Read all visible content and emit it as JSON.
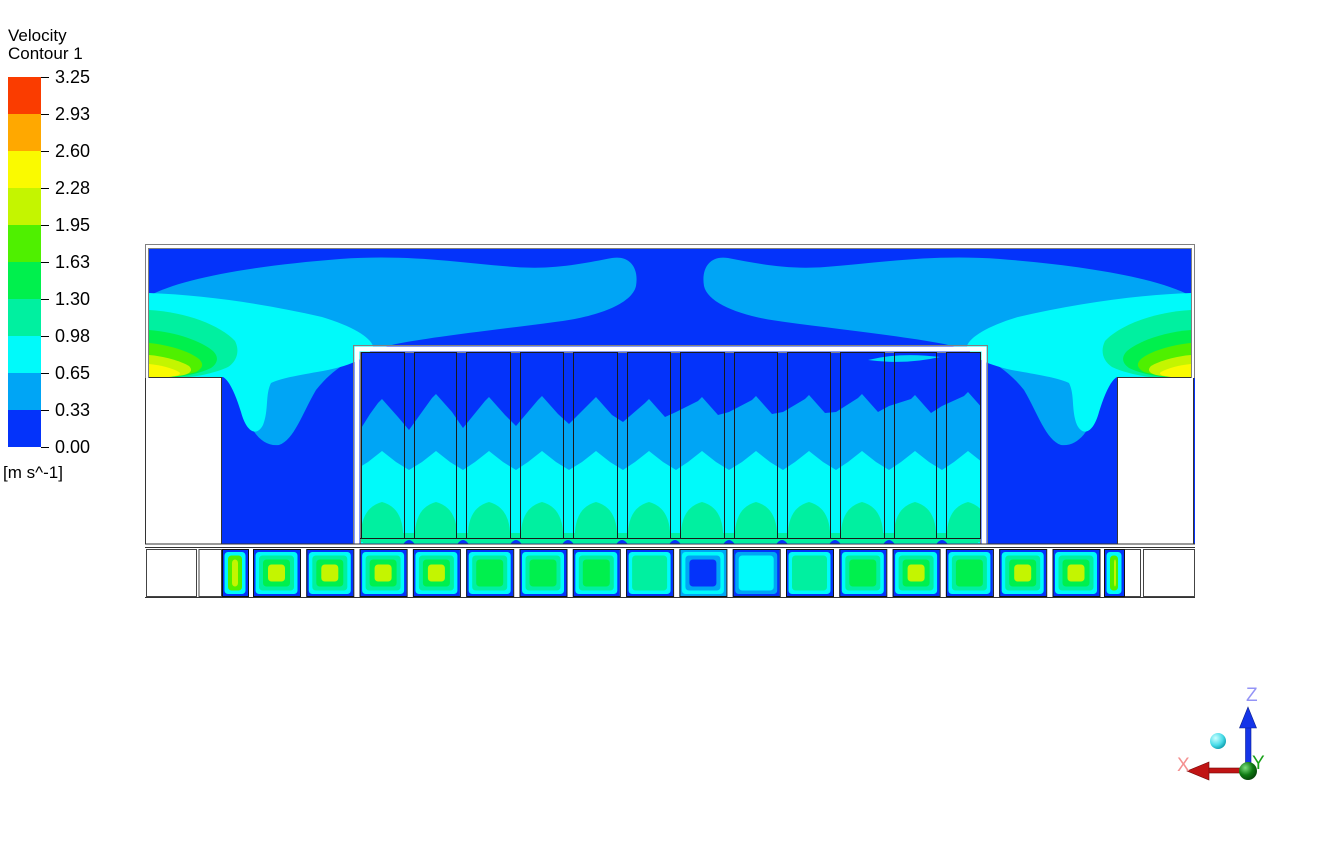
{
  "legend": {
    "title_line1": "Velocity",
    "title_line2": "Contour 1",
    "units": "[m s^-1]",
    "ticks": [
      "3.25",
      "2.93",
      "2.60",
      "2.28",
      "1.95",
      "1.63",
      "1.30",
      "0.98",
      "0.65",
      "0.33",
      "0.00"
    ],
    "band_colors_top_to_bottom": [
      "#FA3C00",
      "#FFA800",
      "#FAFA00",
      "#C4F500",
      "#4FF000",
      "#00F04D",
      "#00F0A0",
      "#00FAFA",
      "#00A5F5",
      "#0433FA"
    ]
  },
  "axes_triad": {
    "x_label": "X",
    "y_label": "Y",
    "z_label": "Z",
    "x_label_color": "#F49090",
    "y_label_color": "#18A018",
    "z_label_color": "#9494F6",
    "x_arrow_color": "#C01414",
    "z_arrow_color": "#1535E8",
    "origin_ball_color": "#0E7A12",
    "screen_normal_ball_color": "#49DCE8"
  },
  "chart_data": {
    "type": "heatmap",
    "subtype": "filled-contour-CFD",
    "title": "Velocity Contour 1",
    "field": "Velocity",
    "units": "m s^-1",
    "levels": [
      0.0,
      0.33,
      0.65,
      0.98,
      1.3,
      1.63,
      1.95,
      2.28,
      2.6,
      2.93,
      3.25
    ],
    "colormap_low_to_high": [
      "#0433FA",
      "#00A5F5",
      "#00FAFA",
      "#00F0A0",
      "#00F04D",
      "#4FF000",
      "#C4F500",
      "#FAFA00",
      "#FFA800",
      "#FA3C00"
    ],
    "legend_position": "top-left",
    "scene": {
      "description": "Vertical cross-section of a data-center-like room. Two wall jets enter near mid-height above white equipment cutouts at left and right walls, peak velocity about 2.3-2.6 m/s (yellow cores), spreading as 0.33-0.65 m/s plumes along the ceiling toward the room center. A white-bordered containment enclosure in the center holds 12 rack outlines; air rises through 18 floor tiles below at 1.3-2.3 m/s (green/yellow-green), decaying upward through 0.65-0.98 m/s (cyan) and 0.33-0.65 m/s bands to near 0 at the enclosure top. Center floor tiles show low flow (0-0.65 m/s).",
      "background_velocity_band": "0.00-0.33",
      "left_jet_peak_band": "2.28-2.60",
      "right_jet_peak_band": "2.28-2.60",
      "rack_count": 12,
      "tile_count": 18,
      "tile_levels_left_to_right": [
        "1.95-2.28",
        "1.30-1.95",
        "1.30-1.95",
        "1.95-2.28",
        "1.30-1.63",
        "1.30-1.63",
        "1.30-1.63",
        "0.98-1.30",
        "0.98-1.30",
        "0.00-0.65",
        "0.33-0.98",
        "0.98-1.30",
        "1.30-1.63",
        "1.30-1.95",
        "1.30-1.63",
        "1.30-1.95",
        "1.30-1.95",
        "1.95-2.28"
      ]
    },
    "tile_styles": [
      "yellow",
      "green_yellow",
      "green_yellow",
      "green_yellow",
      "green_yellow",
      "green",
      "green",
      "green",
      "teal",
      "cold",
      "cyan",
      "teal",
      "green",
      "green_yellow",
      "green",
      "green_yellow",
      "green_yellow",
      "yellow"
    ],
    "tile_palettes": {
      "yellow": [
        "#0433FA",
        "#00FAFA",
        "#4FF000",
        "#C4F500"
      ],
      "green_yellow": [
        "#0433FA",
        "#00FAFA",
        "#00F0A0",
        "#00F04D",
        "#C4F500"
      ],
      "green": [
        "#0433FA",
        "#00FAFA",
        "#00F0A0",
        "#00F04D"
      ],
      "teal": [
        "#0433FA",
        "#00FAFA",
        "#00F0A0"
      ],
      "cyan": [
        "#0433FA",
        "#00A5F5",
        "#00FAFA"
      ],
      "cold": [
        "#00A5F5",
        "#00FAFA",
        "#00A5F5",
        "#0433FA"
      ]
    }
  }
}
